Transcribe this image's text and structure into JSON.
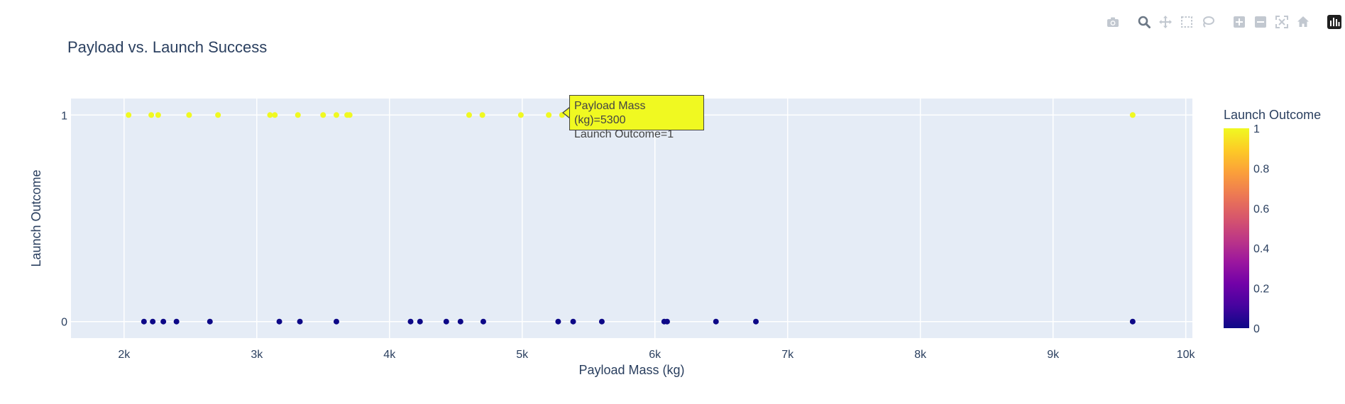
{
  "title": "Payload vs. Launch Success",
  "modebar": {
    "icons": [
      "camera-icon",
      "zoom-icon",
      "pan-icon",
      "box-select-icon",
      "lasso-select-icon",
      "zoom-in-icon",
      "zoom-out-icon",
      "autoscale-icon",
      "reset-axes-icon",
      "plotly-logo-icon"
    ]
  },
  "tooltip": {
    "line1": "Payload Mass (kg)=5300",
    "line2": "Launch Outcome=1",
    "color": "#f0f921"
  },
  "colorbar": {
    "title": "Launch Outcome",
    "ticks": [
      "0",
      "0.2",
      "0.4",
      "0.6",
      "0.8",
      "1"
    ],
    "colors": [
      "#0d0887",
      "#46039f",
      "#7201a8",
      "#9c179e",
      "#bd3786",
      "#d8576b",
      "#ed7953",
      "#fb9f3a",
      "#fdca26",
      "#f0f921"
    ]
  },
  "chart_data": {
    "type": "scatter",
    "title": "Payload vs. Launch Success",
    "xlabel": "Payload Mass (kg)",
    "ylabel": "Launch Outcome",
    "xlim": [
      1600,
      10050
    ],
    "ylim": [
      -0.08,
      1.08
    ],
    "xticks": [
      2000,
      3000,
      4000,
      5000,
      6000,
      7000,
      8000,
      9000,
      10000
    ],
    "xtick_labels": [
      "2k",
      "3k",
      "4k",
      "5k",
      "6k",
      "7k",
      "8k",
      "9k",
      "10k"
    ],
    "yticks": [
      0,
      1
    ],
    "ytick_labels": [
      "0",
      "1"
    ],
    "grid": true,
    "colorscale": "plasma",
    "series": [
      {
        "color": "#f0f921",
        "x": [
          2034,
          2205,
          2257,
          2490,
          2708,
          3100,
          3136,
          3310,
          3500,
          3600,
          3681,
          3700,
          4600,
          4700,
          4990,
          5200,
          5300,
          9600
        ],
        "y": [
          1,
          1,
          1,
          1,
          1,
          1,
          1,
          1,
          1,
          1,
          1,
          1,
          1,
          1,
          1,
          1,
          1,
          1
        ]
      },
      {
        "color": "#0d0887",
        "x": [
          2150,
          2216,
          2296,
          2395,
          2647,
          3170,
          3325,
          3600,
          4159,
          4230,
          4428,
          4535,
          4707,
          5271,
          5384,
          5600,
          6070,
          6092,
          6460,
          6761,
          9600
        ],
        "y": [
          0,
          0,
          0,
          0,
          0,
          0,
          0,
          0,
          0,
          0,
          0,
          0,
          0,
          0,
          0,
          0,
          0,
          0,
          0,
          0,
          0
        ]
      }
    ]
  }
}
